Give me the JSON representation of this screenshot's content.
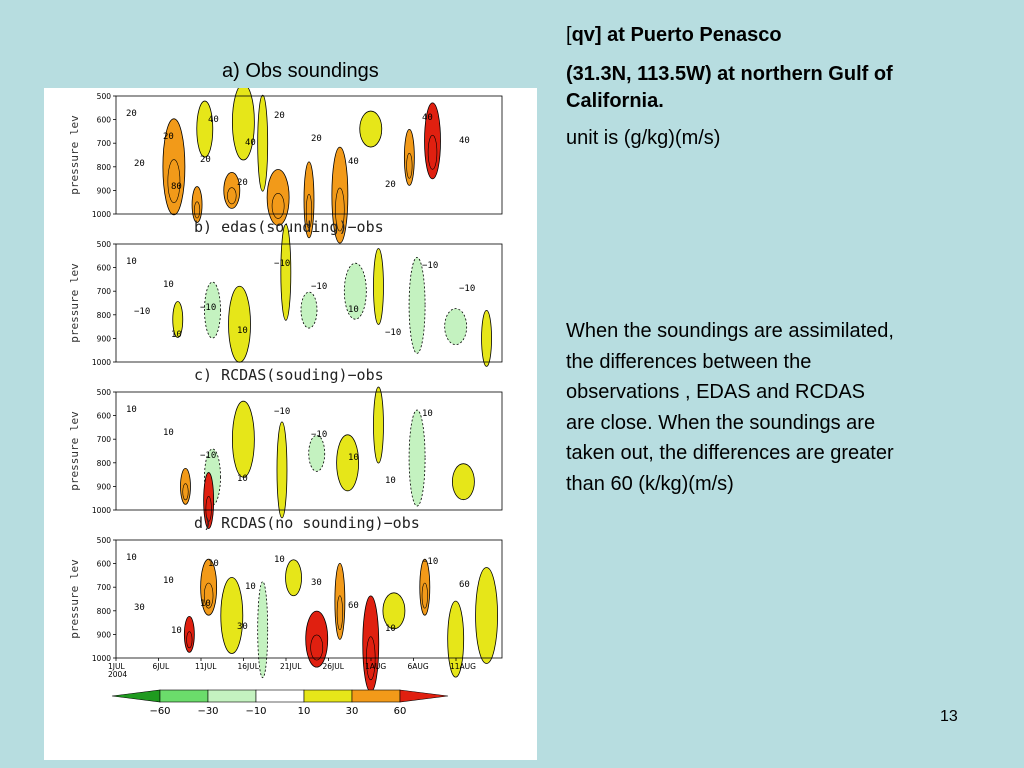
{
  "slide": {
    "figure_title": "a)  Obs soundings",
    "heading_bracket_open": "[",
    "heading_var": "qv] at Puerto Penasco",
    "heading_location": "(31.3N, 113.5W) at northern Gulf of California.",
    "unit_text": "unit is (g/kg)(m/s)",
    "description": "When the soundings are assimilated, the differences between the observations , EDAS and RCDAS are close. When the soundings are taken out, the differences are greater than 60 (k/kg)(m/s)",
    "slide_number": "13"
  },
  "chart_data": [
    {
      "type": "heatmap",
      "title": "",
      "ylabel": "pressure lev",
      "y_ticks": [
        "500",
        "600",
        "700",
        "800",
        "900",
        "1000"
      ],
      "ylim": [
        1000,
        500
      ],
      "contour_labels": [
        "20",
        "20",
        "20",
        "20",
        "20",
        "20",
        "40",
        "20",
        "40",
        "40",
        "20",
        "80",
        "40",
        "40"
      ],
      "features": [
        {
          "x": 0.21,
          "p": 960,
          "v": 40
        },
        {
          "x": 0.23,
          "p": 640,
          "v": 20
        },
        {
          "x": 0.33,
          "p": 610,
          "v": 20
        },
        {
          "x": 0.38,
          "p": 700,
          "v": 20
        },
        {
          "x": 0.3,
          "p": 900,
          "v": 40
        },
        {
          "x": 0.42,
          "p": 930,
          "v": 30
        },
        {
          "x": 0.5,
          "p": 940,
          "v": 40
        },
        {
          "x": 0.58,
          "p": 920,
          "v": 30
        },
        {
          "x": 0.66,
          "p": 640,
          "v": 20
        },
        {
          "x": 0.76,
          "p": 760,
          "v": 30
        },
        {
          "x": 0.82,
          "p": 690,
          "v": 80
        },
        {
          "x": 0.15,
          "p": 800,
          "v": 40
        }
      ]
    },
    {
      "type": "heatmap",
      "title": "b) edas(sounding)−obs",
      "ylabel": "pressure lev",
      "y_ticks": [
        "500",
        "600",
        "700",
        "800",
        "900",
        "1000"
      ],
      "ylim": [
        1000,
        500
      ],
      "contour_labels": [
        "10",
        "10",
        "−10",
        "10",
        "−10",
        "−10",
        "10",
        "−10",
        "−10",
        "−10",
        "−10",
        "10"
      ],
      "features": [
        {
          "x": 0.16,
          "p": 820,
          "v": 10
        },
        {
          "x": 0.25,
          "p": 780,
          "v": -20
        },
        {
          "x": 0.32,
          "p": 840,
          "v": 10
        },
        {
          "x": 0.44,
          "p": 620,
          "v": 10
        },
        {
          "x": 0.5,
          "p": 780,
          "v": -10
        },
        {
          "x": 0.62,
          "p": 700,
          "v": -10
        },
        {
          "x": 0.68,
          "p": 680,
          "v": 10
        },
        {
          "x": 0.78,
          "p": 760,
          "v": -10
        },
        {
          "x": 0.88,
          "p": 850,
          "v": -10
        },
        {
          "x": 0.96,
          "p": 900,
          "v": 10
        }
      ]
    },
    {
      "type": "heatmap",
      "title": "c) RCDAS(souding)−obs",
      "ylabel": "pressure lev",
      "y_ticks": [
        "500",
        "600",
        "700",
        "800",
        "900",
        "1000"
      ],
      "ylim": [
        1000,
        500
      ],
      "contour_labels": [
        "10",
        "10",
        "−10",
        "10",
        "−10",
        "−10",
        "10",
        "10",
        "10"
      ],
      "features": [
        {
          "x": 0.18,
          "p": 900,
          "v": 30
        },
        {
          "x": 0.25,
          "p": 860,
          "v": -10
        },
        {
          "x": 0.33,
          "p": 700,
          "v": 20
        },
        {
          "x": 0.43,
          "p": 830,
          "v": 10
        },
        {
          "x": 0.52,
          "p": 760,
          "v": -20
        },
        {
          "x": 0.6,
          "p": 800,
          "v": 10
        },
        {
          "x": 0.68,
          "p": 640,
          "v": 20
        },
        {
          "x": 0.78,
          "p": 780,
          "v": -10
        },
        {
          "x": 0.9,
          "p": 880,
          "v": 10
        },
        {
          "x": 0.24,
          "p": 960,
          "v": 60
        }
      ]
    },
    {
      "type": "heatmap",
      "title": "d) RCDAS(no sounding)−obs",
      "ylabel": "pressure lev",
      "y_ticks": [
        "500",
        "600",
        "700",
        "800",
        "900",
        "1000"
      ],
      "ylim": [
        1000,
        500
      ],
      "x_ticks": [
        "1JUL\n2004",
        "6JUL",
        "11JUL",
        "16JUL",
        "21JUL",
        "26JUL",
        "1AUG",
        "6AUG",
        "11AUG"
      ],
      "contour_labels": [
        "10",
        "10",
        "10",
        "30",
        "10",
        "30",
        "60",
        "10",
        "−10",
        "60",
        "30",
        "10",
        "10",
        "10"
      ],
      "features": [
        {
          "x": 0.19,
          "p": 900,
          "v": 60
        },
        {
          "x": 0.24,
          "p": 700,
          "v": 30
        },
        {
          "x": 0.3,
          "p": 820,
          "v": 10
        },
        {
          "x": 0.38,
          "p": 880,
          "v": -10
        },
        {
          "x": 0.46,
          "p": 660,
          "v": 20
        },
        {
          "x": 0.52,
          "p": 920,
          "v": 60
        },
        {
          "x": 0.58,
          "p": 760,
          "v": 30
        },
        {
          "x": 0.66,
          "p": 940,
          "v": 60
        },
        {
          "x": 0.72,
          "p": 800,
          "v": 10
        },
        {
          "x": 0.8,
          "p": 700,
          "v": 30
        },
        {
          "x": 0.88,
          "p": 920,
          "v": 10
        },
        {
          "x": 0.96,
          "p": 820,
          "v": 20
        }
      ]
    },
    {
      "type": "colorbar",
      "levels": [
        "−60",
        "−30",
        "−10",
        "10",
        "30",
        "60"
      ],
      "colors": [
        "#1f9a1f",
        "#6bdc6b",
        "#c4f2c0",
        "#ffffff",
        "#e6e619",
        "#f29a19",
        "#e02010"
      ]
    }
  ]
}
